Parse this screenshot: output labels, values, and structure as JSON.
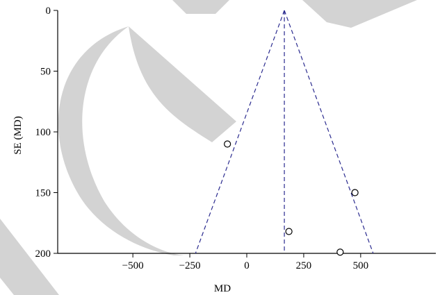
{
  "chart_data": {
    "type": "scatter",
    "title": "",
    "xlabel": "MD",
    "ylabel": "SE (MD)",
    "xlim": [
      -830,
      830
    ],
    "ylim": [
      0,
      200
    ],
    "y_inverted": true,
    "x_ticks": [
      -500,
      -250,
      0,
      250,
      500
    ],
    "x_tick_labels": [
      "−500",
      "−250",
      "0",
      "250",
      "500"
    ],
    "y_ticks": [
      0,
      50,
      100,
      150,
      200
    ],
    "y_tick_labels": [
      "0",
      "50",
      "100",
      "150",
      "200"
    ],
    "grid": false,
    "legend": "none",
    "pooled_md": 165,
    "funnel_bound_md_at_se_200": [
      -225,
      555
    ],
    "points": [
      {
        "x": -85,
        "y": 110
      },
      {
        "x": 475,
        "y": 150
      },
      {
        "x": 185,
        "y": 182
      },
      {
        "x": 410,
        "y": 199
      }
    ],
    "colors": {
      "axis": "#000000",
      "funnel": "#2b2b8f",
      "point": "#000000",
      "watermark": "#d3d3d3"
    }
  }
}
